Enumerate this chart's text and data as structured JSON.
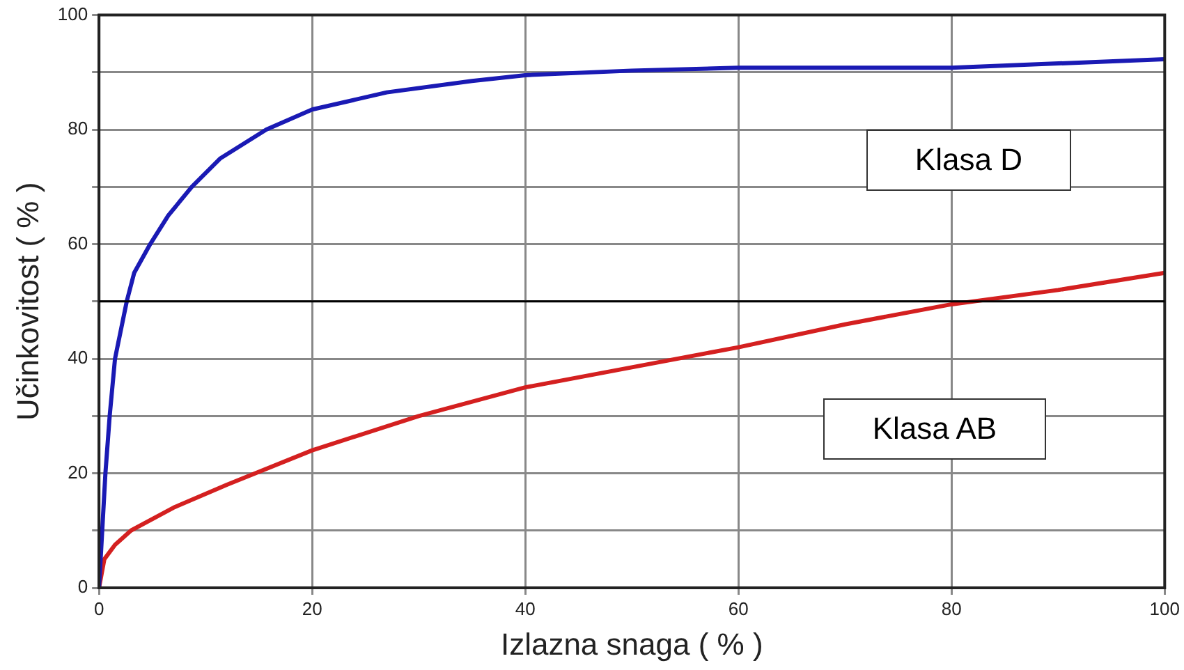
{
  "chart_data": {
    "type": "line",
    "xlabel": "Izlazna snaga ( % )",
    "ylabel": "Učinkovitost ( % )",
    "xlim": [
      0,
      100
    ],
    "xticks": [
      0,
      20,
      40,
      60,
      80,
      100
    ],
    "ylim": [
      0,
      100
    ],
    "yticks": [
      0,
      {
        "value": 10,
        "label": null
      },
      20,
      {
        "value": 30,
        "label": null
      },
      40,
      {
        "value": 50,
        "label": null
      },
      60,
      {
        "value": 70,
        "label": null
      },
      80,
      {
        "value": 90,
        "label": null
      },
      100
    ],
    "grid": true,
    "legend": false,
    "marker": "none",
    "line_style": "solid",
    "ref_lines": [
      {
        "axis": "y",
        "value": 50,
        "color": "#000000"
      }
    ],
    "series": [
      {
        "name": "Klasa D",
        "color": "#1a1ab4",
        "x": [
          0,
          0.3,
          0.6,
          1,
          1.5,
          2.6,
          3.3,
          4.8,
          6.5,
          8.7,
          11.4,
          15.7,
          20,
          27,
          35,
          40,
          50,
          60,
          80,
          100
        ],
        "values": [
          0,
          10,
          20,
          30,
          40,
          50,
          55,
          60,
          65,
          70,
          75,
          80,
          83.5,
          86.5,
          88.5,
          89.5,
          90.3,
          90.8,
          90.8,
          92.3
        ]
      },
      {
        "name": "Klasa AB",
        "color": "#d42020",
        "x": [
          0,
          0.5,
          1.5,
          3,
          7,
          12,
          20,
          30,
          40,
          50,
          60,
          70,
          80,
          90,
          100
        ],
        "values": [
          0,
          5,
          7.5,
          10,
          14,
          18,
          24,
          30,
          35,
          38.5,
          42,
          46,
          49.5,
          52,
          55
        ]
      }
    ]
  }
}
